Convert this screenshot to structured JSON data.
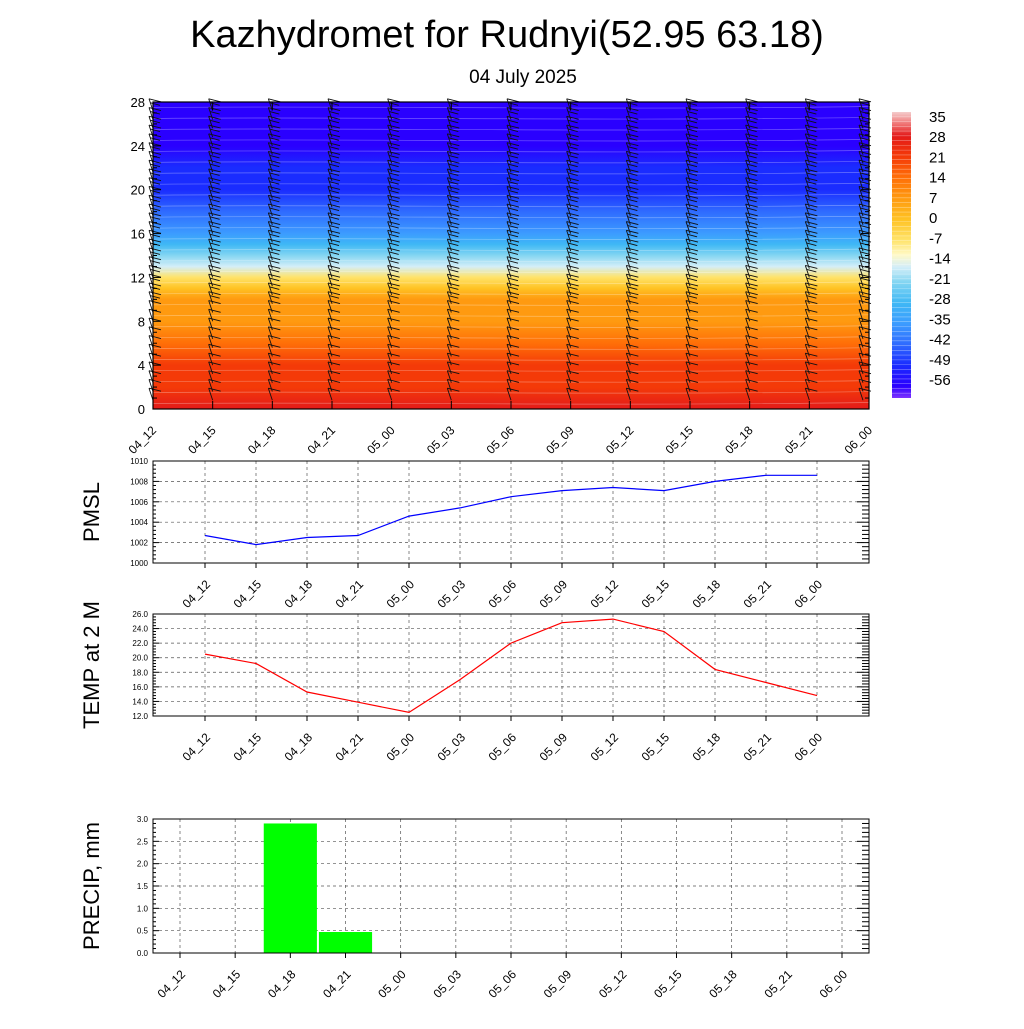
{
  "title": "Kazhydromet for Rudnyi(52.95 63.18)",
  "subtitle": "04 July 2025",
  "time_labels": [
    "04_12",
    "04_15",
    "04_18",
    "04_21",
    "05_00",
    "05_03",
    "05_06",
    "05_09",
    "05_12",
    "05_15",
    "05_18",
    "05_21",
    "06_00"
  ],
  "chart_data": [
    {
      "type": "heatmap",
      "ylim": [
        0,
        28
      ],
      "yticks": [
        0,
        4,
        8,
        12,
        16,
        20,
        24,
        28
      ],
      "x": [
        "04_12",
        "04_15",
        "04_18",
        "04_21",
        "05_00",
        "05_03",
        "05_06",
        "05_09",
        "05_12",
        "05_15",
        "05_18",
        "05_21",
        "06_00"
      ],
      "colorbar": {
        "labels": [
          "35",
          "28",
          "21",
          "14",
          "7",
          "0",
          "-7",
          "-14",
          "-21",
          "-28",
          "-35",
          "-42",
          "-49",
          "-56"
        ],
        "range": [
          -60,
          36
        ]
      },
      "temperature_profile": {
        "levels": [
          0,
          2,
          4,
          6,
          8,
          10,
          11,
          12,
          13,
          14,
          15,
          16,
          18,
          20,
          22,
          24,
          26,
          28
        ],
        "values": [
          25,
          22,
          18,
          14,
          10,
          5,
          1,
          -5,
          -16,
          -22,
          -27,
          -32,
          -40,
          -47,
          -52,
          -56,
          -57,
          -57
        ]
      },
      "wind_barbs": true
    },
    {
      "type": "line",
      "ylabel": "PMSL",
      "ylim": [
        1000,
        1010
      ],
      "yticks": [
        "1000",
        "1002",
        "1004",
        "1006",
        "1008",
        "1010"
      ],
      "x": [
        "04_12",
        "04_15",
        "04_18",
        "04_21",
        "05_00",
        "05_03",
        "05_06",
        "05_09",
        "05_12",
        "05_15",
        "05_18",
        "05_21",
        "06_00"
      ],
      "values": [
        1002.7,
        1001.8,
        1002.5,
        1002.7,
        1004.6,
        1005.4,
        1006.5,
        1007.1,
        1007.4,
        1007.1,
        1008.0,
        1008.6,
        1008.6
      ],
      "color": "#0000ff",
      "grid": true
    },
    {
      "type": "line",
      "ylabel": "TEMP at 2 M",
      "ylim": [
        12,
        26
      ],
      "yticks": [
        "12.0",
        "14.0",
        "16.0",
        "18.0",
        "20.0",
        "22.0",
        "24.0",
        "26.0"
      ],
      "x": [
        "04_12",
        "04_15",
        "04_18",
        "04_21",
        "05_00",
        "05_03",
        "05_06",
        "05_09",
        "05_12",
        "05_15",
        "05_18",
        "05_21",
        "06_00"
      ],
      "values": [
        20.5,
        19.2,
        15.3,
        13.9,
        12.5,
        17.0,
        22.0,
        24.8,
        25.3,
        23.6,
        18.4,
        16.6,
        14.8
      ],
      "color": "#ff0000",
      "grid": true
    },
    {
      "type": "bar",
      "ylabel": "PRECIP, mm",
      "ylim": [
        0,
        3
      ],
      "yticks": [
        "0.0",
        "0.5",
        "1.0",
        "1.5",
        "2.0",
        "2.5",
        "3.0"
      ],
      "x": [
        "04_12",
        "04_15",
        "04_18",
        "04_21",
        "05_00",
        "05_03",
        "05_06",
        "05_09",
        "05_12",
        "05_15",
        "05_18",
        "05_21",
        "06_00"
      ],
      "values": [
        0,
        0,
        2.9,
        0.47,
        0,
        0,
        0,
        0,
        0,
        0,
        0,
        0,
        0
      ],
      "color": "#00ff00",
      "grid": true
    }
  ]
}
